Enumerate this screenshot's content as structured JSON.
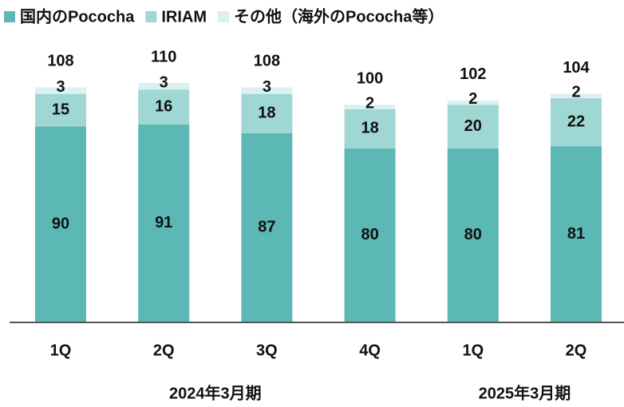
{
  "chart_data": {
    "type": "stacked_bar",
    "categories": [
      "1Q",
      "2Q",
      "3Q",
      "4Q",
      "1Q",
      "2Q"
    ],
    "groups": [
      "2024年3月期",
      "2025年3月期"
    ],
    "series": [
      {
        "name": "国内のPococha",
        "color": "#5bb8b4",
        "values": [
          90,
          91,
          87,
          80,
          80,
          81
        ]
      },
      {
        "name": "IRIAM",
        "color": "#9fd7d4",
        "values": [
          15,
          16,
          18,
          18,
          20,
          22
        ]
      },
      {
        "name": "その他（海外のPococha等）",
        "color": "#daf1ef",
        "values": [
          3,
          3,
          3,
          2,
          2,
          2
        ]
      }
    ],
    "totals": [
      108,
      110,
      108,
      100,
      102,
      104
    ],
    "legend": "top"
  }
}
